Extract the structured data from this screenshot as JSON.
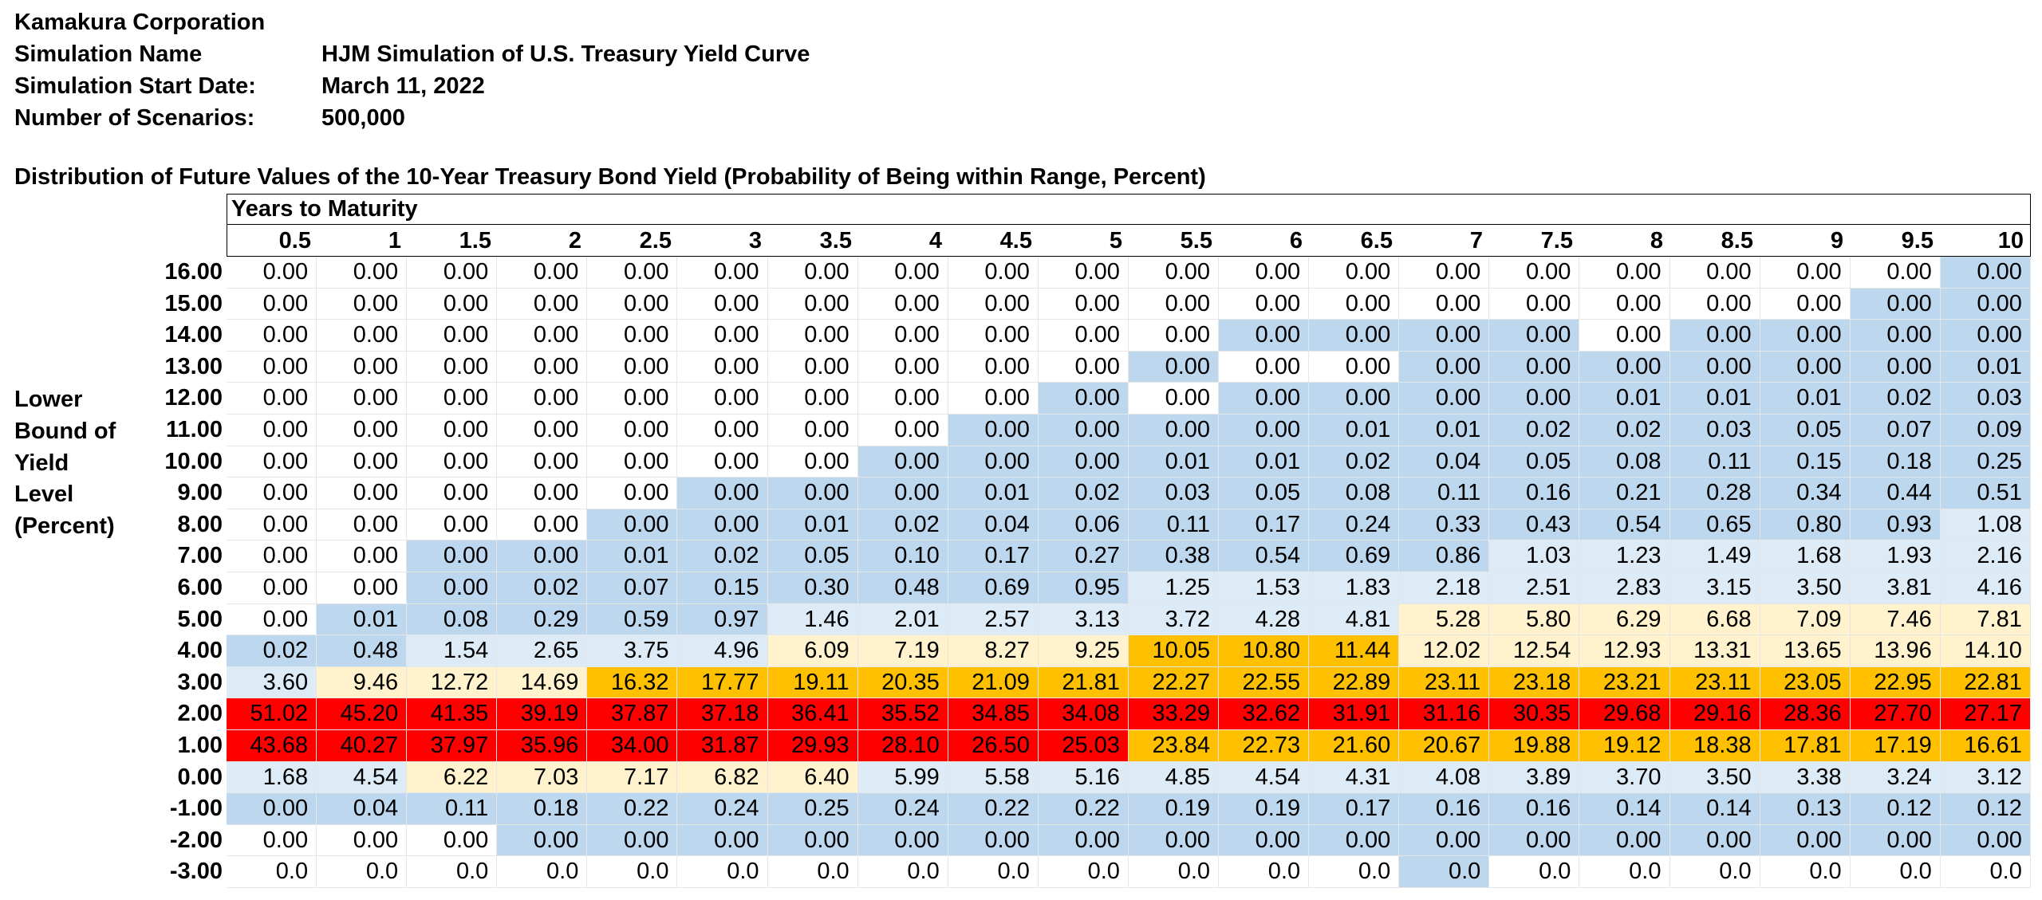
{
  "header": {
    "company": "Kamakura Corporation",
    "sim_name_label": "Simulation Name",
    "sim_name_value": "HJM Simulation of U.S. Treasury Yield Curve",
    "start_label": "Simulation Start Date:",
    "start_value": "March 11, 2022",
    "scenarios_label": "Number of Scenarios:",
    "scenarios_value": "500,000"
  },
  "table_title": "Distribution of Future Values of the 10-Year Treasury Bond Yield (Probability of Being within Range, Percent)",
  "years_header": "Years to Maturity",
  "side_label": [
    "Lower",
    "Bound of",
    "Yield",
    "Level",
    "(Percent)"
  ],
  "maturities": [
    "0.5",
    "1",
    "1.5",
    "2",
    "2.5",
    "3",
    "3.5",
    "4",
    "4.5",
    "5",
    "5.5",
    "6",
    "6.5",
    "7",
    "7.5",
    "8",
    "8.5",
    "9",
    "9.5",
    "10"
  ],
  "color_key": {
    "W": "#ffffff",
    "B": "#bdd7ee",
    "L": "#ddebf7",
    "C": "#fff2cc",
    "G": "#ffc000",
    "R": "#ff0000"
  },
  "rows": [
    {
      "label": "16.00",
      "values": [
        "0.00",
        "0.00",
        "0.00",
        "0.00",
        "0.00",
        "0.00",
        "0.00",
        "0.00",
        "0.00",
        "0.00",
        "0.00",
        "0.00",
        "0.00",
        "0.00",
        "0.00",
        "0.00",
        "0.00",
        "0.00",
        "0.00",
        "0.00"
      ],
      "colors": "WWWWWWWWWWWWWWWWWWWB"
    },
    {
      "label": "15.00",
      "values": [
        "0.00",
        "0.00",
        "0.00",
        "0.00",
        "0.00",
        "0.00",
        "0.00",
        "0.00",
        "0.00",
        "0.00",
        "0.00",
        "0.00",
        "0.00",
        "0.00",
        "0.00",
        "0.00",
        "0.00",
        "0.00",
        "0.00",
        "0.00"
      ],
      "colors": "WWWWWWWWWWWWWWWWWWBB"
    },
    {
      "label": "14.00",
      "values": [
        "0.00",
        "0.00",
        "0.00",
        "0.00",
        "0.00",
        "0.00",
        "0.00",
        "0.00",
        "0.00",
        "0.00",
        "0.00",
        "0.00",
        "0.00",
        "0.00",
        "0.00",
        "0.00",
        "0.00",
        "0.00",
        "0.00",
        "0.00"
      ],
      "colors": "WWWWWWWWWWWBBBBWBBBB"
    },
    {
      "label": "13.00",
      "values": [
        "0.00",
        "0.00",
        "0.00",
        "0.00",
        "0.00",
        "0.00",
        "0.00",
        "0.00",
        "0.00",
        "0.00",
        "0.00",
        "0.00",
        "0.00",
        "0.00",
        "0.00",
        "0.00",
        "0.00",
        "0.00",
        "0.00",
        "0.01"
      ],
      "colors": "WWWWWWWWWWBWWBBBBBBB"
    },
    {
      "label": "12.00",
      "values": [
        "0.00",
        "0.00",
        "0.00",
        "0.00",
        "0.00",
        "0.00",
        "0.00",
        "0.00",
        "0.00",
        "0.00",
        "0.00",
        "0.00",
        "0.00",
        "0.00",
        "0.00",
        "0.01",
        "0.01",
        "0.01",
        "0.02",
        "0.03"
      ],
      "colors": "WWWWWWWWWBWBBBBBBBBB"
    },
    {
      "label": "11.00",
      "values": [
        "0.00",
        "0.00",
        "0.00",
        "0.00",
        "0.00",
        "0.00",
        "0.00",
        "0.00",
        "0.00",
        "0.00",
        "0.00",
        "0.00",
        "0.01",
        "0.01",
        "0.02",
        "0.02",
        "0.03",
        "0.05",
        "0.07",
        "0.09"
      ],
      "colors": "WWWWWWWWBBBBBBBBBBBB"
    },
    {
      "label": "10.00",
      "values": [
        "0.00",
        "0.00",
        "0.00",
        "0.00",
        "0.00",
        "0.00",
        "0.00",
        "0.00",
        "0.00",
        "0.00",
        "0.01",
        "0.01",
        "0.02",
        "0.04",
        "0.05",
        "0.08",
        "0.11",
        "0.15",
        "0.18",
        "0.25"
      ],
      "colors": "WWWWWWWBBBBBBBBBBBBB"
    },
    {
      "label": "9.00",
      "values": [
        "0.00",
        "0.00",
        "0.00",
        "0.00",
        "0.00",
        "0.00",
        "0.00",
        "0.00",
        "0.01",
        "0.02",
        "0.03",
        "0.05",
        "0.08",
        "0.11",
        "0.16",
        "0.21",
        "0.28",
        "0.34",
        "0.44",
        "0.51"
      ],
      "colors": "WWWWWBBBBBBBBBBBBBBB"
    },
    {
      "label": "8.00",
      "values": [
        "0.00",
        "0.00",
        "0.00",
        "0.00",
        "0.00",
        "0.00",
        "0.01",
        "0.02",
        "0.04",
        "0.06",
        "0.11",
        "0.17",
        "0.24",
        "0.33",
        "0.43",
        "0.54",
        "0.65",
        "0.80",
        "0.93",
        "1.08"
      ],
      "colors": "WWWWBBBBBBBBBBBBBBBL"
    },
    {
      "label": "7.00",
      "values": [
        "0.00",
        "0.00",
        "0.00",
        "0.00",
        "0.01",
        "0.02",
        "0.05",
        "0.10",
        "0.17",
        "0.27",
        "0.38",
        "0.54",
        "0.69",
        "0.86",
        "1.03",
        "1.23",
        "1.49",
        "1.68",
        "1.93",
        "2.16"
      ],
      "colors": "WWBBBBBBBBBBBBLLLLLL"
    },
    {
      "label": "6.00",
      "values": [
        "0.00",
        "0.00",
        "0.00",
        "0.02",
        "0.07",
        "0.15",
        "0.30",
        "0.48",
        "0.69",
        "0.95",
        "1.25",
        "1.53",
        "1.83",
        "2.18",
        "2.51",
        "2.83",
        "3.15",
        "3.50",
        "3.81",
        "4.16"
      ],
      "colors": "WWBBBBBBBBLLLLLLLLLL"
    },
    {
      "label": "5.00",
      "values": [
        "0.00",
        "0.01",
        "0.08",
        "0.29",
        "0.59",
        "0.97",
        "1.46",
        "2.01",
        "2.57",
        "3.13",
        "3.72",
        "4.28",
        "4.81",
        "5.28",
        "5.80",
        "6.29",
        "6.68",
        "7.09",
        "7.46",
        "7.81"
      ],
      "colors": "WBBBBBLLLLLLLCCCCCCC"
    },
    {
      "label": "4.00",
      "values": [
        "0.02",
        "0.48",
        "1.54",
        "2.65",
        "3.75",
        "4.96",
        "6.09",
        "7.19",
        "8.27",
        "9.25",
        "10.05",
        "10.80",
        "11.44",
        "12.02",
        "12.54",
        "12.93",
        "13.31",
        "13.65",
        "13.96",
        "14.10"
      ],
      "colors": "BBLLLLCCCCGGGCCCCCCC"
    },
    {
      "label": "3.00",
      "values": [
        "3.60",
        "9.46",
        "12.72",
        "14.69",
        "16.32",
        "17.77",
        "19.11",
        "20.35",
        "21.09",
        "21.81",
        "22.27",
        "22.55",
        "22.89",
        "23.11",
        "23.18",
        "23.21",
        "23.11",
        "23.05",
        "22.95",
        "22.81"
      ],
      "colors": "LCCCGGGGGGGGGGGGGGGG"
    },
    {
      "label": "2.00",
      "values": [
        "51.02",
        "45.20",
        "41.35",
        "39.19",
        "37.87",
        "37.18",
        "36.41",
        "35.52",
        "34.85",
        "34.08",
        "33.29",
        "32.62",
        "31.91",
        "31.16",
        "30.35",
        "29.68",
        "29.16",
        "28.36",
        "27.70",
        "27.17"
      ],
      "colors": "RRRRRRRRRRRRRRRRRRRR"
    },
    {
      "label": "1.00",
      "values": [
        "43.68",
        "40.27",
        "37.97",
        "35.96",
        "34.00",
        "31.87",
        "29.93",
        "28.10",
        "26.50",
        "25.03",
        "23.84",
        "22.73",
        "21.60",
        "20.67",
        "19.88",
        "19.12",
        "18.38",
        "17.81",
        "17.19",
        "16.61"
      ],
      "colors": "RRRRRRRRRRGGGGGGGGGG"
    },
    {
      "label": "0.00",
      "values": [
        "1.68",
        "4.54",
        "6.22",
        "7.03",
        "7.17",
        "6.82",
        "6.40",
        "5.99",
        "5.58",
        "5.16",
        "4.85",
        "4.54",
        "4.31",
        "4.08",
        "3.89",
        "3.70",
        "3.50",
        "3.38",
        "3.24",
        "3.12"
      ],
      "colors": "LLCCCCCLLLLLLLLLLLLL"
    },
    {
      "label": "-1.00",
      "values": [
        "0.00",
        "0.04",
        "0.11",
        "0.18",
        "0.22",
        "0.24",
        "0.25",
        "0.24",
        "0.22",
        "0.22",
        "0.19",
        "0.19",
        "0.17",
        "0.16",
        "0.16",
        "0.14",
        "0.14",
        "0.13",
        "0.12",
        "0.12"
      ],
      "colors": "BBBBBBBBBBBBBBBBBBBB"
    },
    {
      "label": "-2.00",
      "values": [
        "0.00",
        "0.00",
        "0.00",
        "0.00",
        "0.00",
        "0.00",
        "0.00",
        "0.00",
        "0.00",
        "0.00",
        "0.00",
        "0.00",
        "0.00",
        "0.00",
        "0.00",
        "0.00",
        "0.00",
        "0.00",
        "0.00",
        "0.00"
      ],
      "colors": "WWWBBBBBBBBBBBBBBBBB"
    },
    {
      "label": "-3.00",
      "values": [
        "0.0",
        "0.0",
        "0.0",
        "0.0",
        "0.0",
        "0.0",
        "0.0",
        "0.0",
        "0.0",
        "0.0",
        "0.0",
        "0.0",
        "0.0",
        "0.0",
        "0.0",
        "0.0",
        "0.0",
        "0.0",
        "0.0",
        "0.0"
      ],
      "colors": "WWWWWWWWWWWWWBWWWWWW"
    }
  ]
}
